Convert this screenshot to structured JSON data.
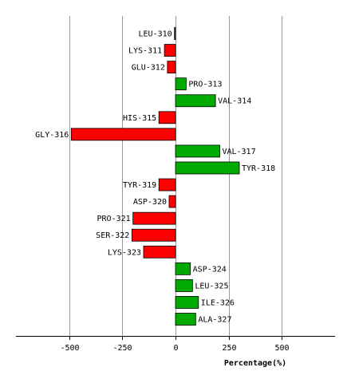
{
  "chart_data": {
    "type": "bar",
    "orientation": "horizontal",
    "xlabel": "Percentage(%)",
    "xlim": [
      -750,
      750
    ],
    "xticks": [
      -500,
      -250,
      0,
      250,
      500
    ],
    "grid": true,
    "colors": {
      "positive": "#00aa00",
      "negative": "#ff0000"
    },
    "categories": [
      "LEU-310",
      "LYS-311",
      "GLU-312",
      "PRO-313",
      "VAL-314",
      "HIS-315",
      "GLY-316",
      "VAL-317",
      "TYR-318",
      "TYR-319",
      "ASP-320",
      "PRO-321",
      "SER-322",
      "LYS-323",
      "ASP-324",
      "LEU-325",
      "ILE-326",
      "ALA-327"
    ],
    "values": [
      -5,
      -52,
      -38,
      50,
      188,
      -78,
      -490,
      208,
      300,
      -78,
      -30,
      -200,
      -205,
      -150,
      70,
      80,
      108,
      95
    ]
  }
}
